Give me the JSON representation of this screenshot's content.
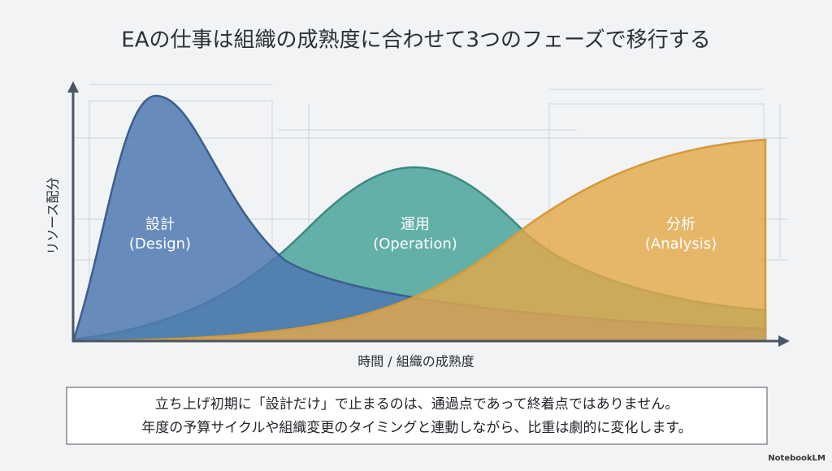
{
  "title": "EAの仕事は組織の成熟度に合わせて3つのフェーズで移行する",
  "diagram": {
    "y_axis_label": "リソース配分",
    "x_axis_label": "時間 / 組織の成熟度",
    "phases": [
      {
        "name": "設計",
        "label": "(Design)"
      },
      {
        "name": "運用",
        "label": "(Operation)"
      },
      {
        "name": "分析",
        "label": "(Analysis)"
      }
    ]
  },
  "caption": {
    "lines": [
      "立ち上げ初期に「設計だけ」で止まるのは、通過点であって終着点ではありません。",
      "年度の予算サイクルや組織変更のタイミングと連動しながら、比重は劇的に変化します。"
    ]
  },
  "footer": {
    "brand": "NotebookLM"
  }
}
